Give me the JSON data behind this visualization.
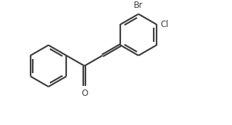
{
  "background": "#ffffff",
  "line_color": "#3d3d3d",
  "line_width": 1.6,
  "label_color": "#3d3d3d",
  "label_fontsize": 8.5,
  "figsize": [
    3.26,
    1.76
  ],
  "dpi": 100,
  "xlim": [
    0.0,
    9.5
  ],
  "ylim": [
    0.0,
    5.5
  ]
}
